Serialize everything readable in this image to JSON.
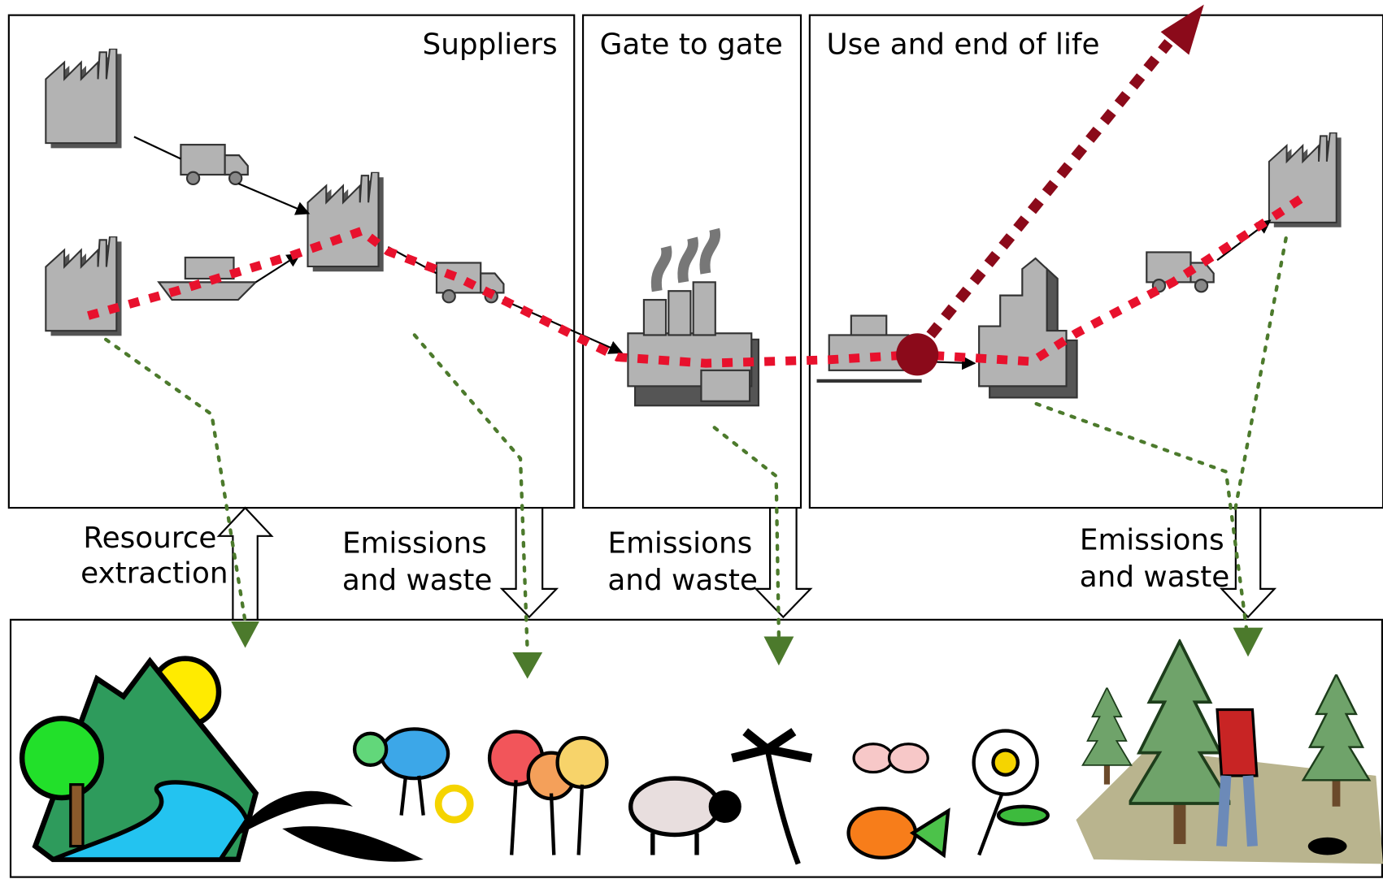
{
  "sections": [
    {
      "title": "Suppliers"
    },
    {
      "title": "Gate to gate"
    },
    {
      "title": "Use and end of life"
    }
  ],
  "flows": [
    {
      "lines": [
        "Resource",
        "extraction"
      ]
    },
    {
      "lines": [
        "Emissions",
        "and waste"
      ]
    },
    {
      "lines": [
        "Emissions",
        "and waste"
      ]
    },
    {
      "lines": [
        "Emissions",
        "and waste"
      ]
    }
  ]
}
